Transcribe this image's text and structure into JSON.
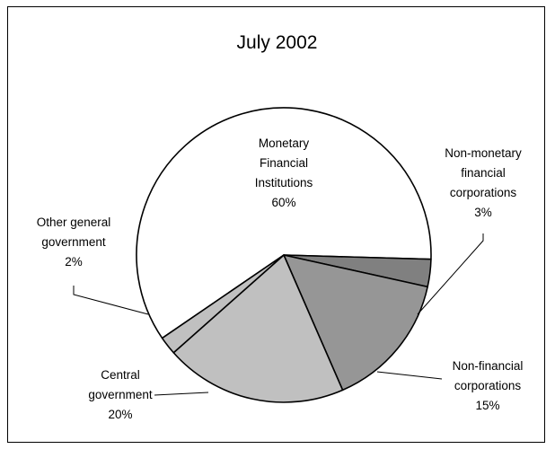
{
  "chart_data": {
    "type": "pie",
    "title": "July 2002",
    "slices": [
      {
        "label": [
          "Monetary",
          "Financial",
          "Institutions"
        ],
        "value": 60,
        "value_label": "60%",
        "color": "#ffffff"
      },
      {
        "label": [
          "Non-monetary",
          "financial",
          "corporations"
        ],
        "value": 3,
        "value_label": "3%",
        "color": "#808080"
      },
      {
        "label": [
          "Non-financial",
          "corporations"
        ],
        "value": 15,
        "value_label": "15%",
        "color": "#969696"
      },
      {
        "label": [
          "Central",
          "government"
        ],
        "value": 20,
        "value_label": "20%",
        "color": "#c0c0c0"
      },
      {
        "label": [
          "Other general",
          "government"
        ],
        "value": 2,
        "value_label": "2%",
        "color": "#c0c0c0"
      }
    ]
  }
}
